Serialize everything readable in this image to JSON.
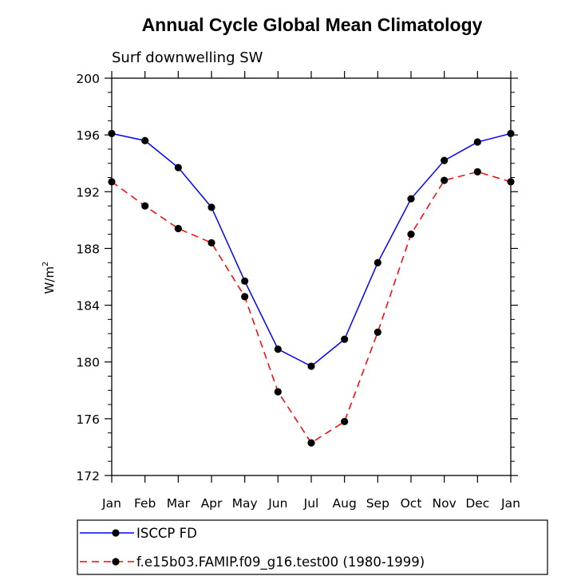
{
  "chart_data": {
    "type": "line",
    "title": "Annual Cycle Global Mean Climatology",
    "subtitle": "Surf downwelling SW",
    "ylabel": "W/m",
    "ylabel_sup": "2",
    "categories": [
      "Jan",
      "Feb",
      "Mar",
      "Apr",
      "May",
      "Jun",
      "Jul",
      "Aug",
      "Sep",
      "Oct",
      "Nov",
      "Dec",
      "Jan"
    ],
    "yticks": [
      "172",
      "176",
      "180",
      "184",
      "188",
      "192",
      "196",
      "200"
    ],
    "ylim": [
      172,
      200
    ],
    "grid": false,
    "legend_position": "bottom",
    "series": [
      {
        "name": "ISCCP FD",
        "color": "#0000ff",
        "dash": "solid",
        "marker": "filled-circle",
        "values": [
          196.1,
          195.6,
          193.7,
          190.9,
          185.7,
          180.9,
          179.7,
          181.6,
          187.0,
          191.5,
          194.2,
          195.5,
          196.1
        ]
      },
      {
        "name": "f.e15b03.FAMIP.f09_g16.test00 (1980-1999)",
        "color": "#ff0000",
        "dash": "dashed",
        "marker": "filled-circle",
        "values": [
          192.7,
          191.0,
          189.4,
          188.4,
          184.6,
          177.9,
          174.3,
          175.8,
          182.1,
          189.0,
          192.8,
          193.4,
          192.7
        ]
      }
    ]
  }
}
